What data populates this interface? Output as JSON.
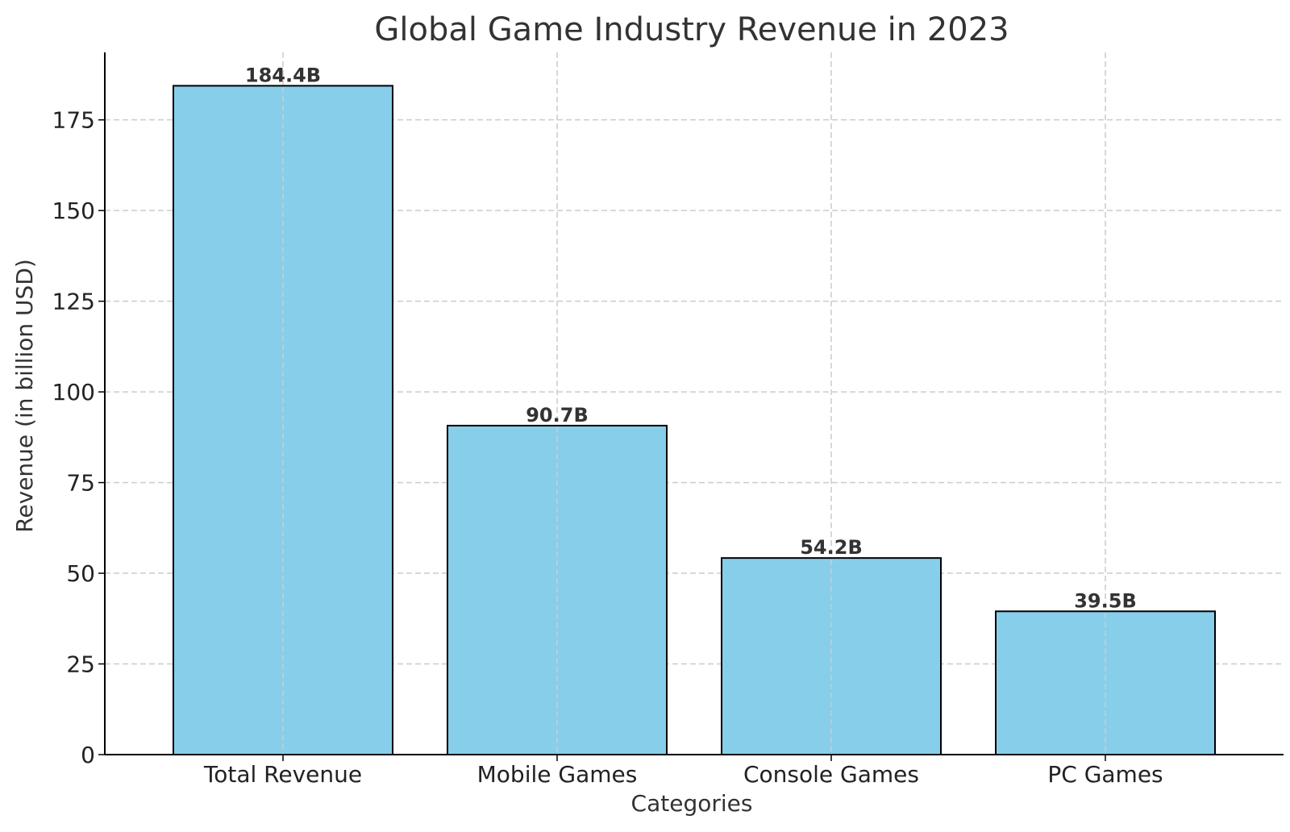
{
  "chart_data": {
    "type": "bar",
    "title": "Global Game Industry Revenue in 2023",
    "xlabel": "Categories",
    "ylabel": "Revenue (in billion USD)",
    "categories": [
      "Total Revenue",
      "Mobile Games",
      "Console Games",
      "PC Games"
    ],
    "values": [
      184.4,
      90.7,
      54.2,
      39.5
    ],
    "data_labels": [
      "184.4B",
      "90.7B",
      "54.2B",
      "39.5B"
    ],
    "yticks": [
      0,
      25,
      50,
      75,
      100,
      125,
      150,
      175
    ],
    "ylim": [
      0,
      193.6
    ],
    "grid": true,
    "bar_color": "#87CEEB",
    "bar_edge_color": "#000000"
  }
}
